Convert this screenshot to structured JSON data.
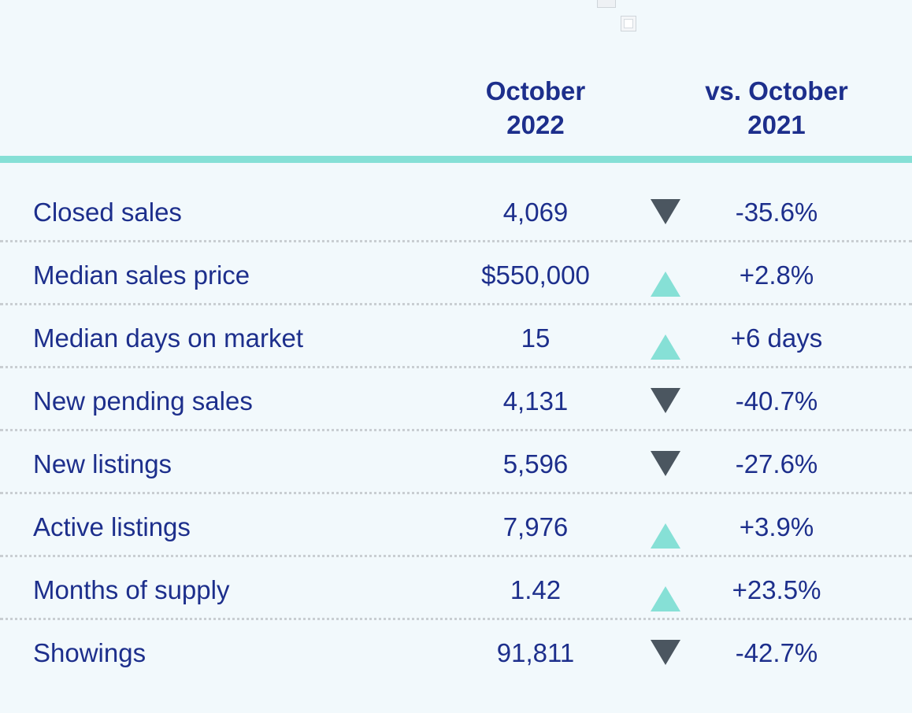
{
  "colors": {
    "text": "#1d2f8c",
    "rule": "#86e0d6",
    "up": "#86e0d6",
    "down": "#4b5660",
    "background": "#f2f9fc"
  },
  "header": {
    "current": [
      "October",
      "2022"
    ],
    "compare": [
      "vs. October",
      "2021"
    ]
  },
  "chart_data": {
    "type": "table",
    "columns": [
      "",
      "October 2022",
      "",
      "vs. October 2021"
    ],
    "rows": [
      {
        "label": "Closed sales",
        "value": "4,069",
        "direction": "down",
        "change": "-35.6%"
      },
      {
        "label": "Median sales price",
        "value": "$550,000",
        "direction": "up",
        "change": "+2.8%"
      },
      {
        "label": "Median days on market",
        "value": "15",
        "direction": "up",
        "change": "+6 days"
      },
      {
        "label": "New pending sales",
        "value": "4,131",
        "direction": "down",
        "change": "-40.7%"
      },
      {
        "label": "New listings",
        "value": "5,596",
        "direction": "down",
        "change": "-27.6%"
      },
      {
        "label": "Active listings",
        "value": "7,976",
        "direction": "up",
        "change": "+3.9%"
      },
      {
        "label": "Months of supply",
        "value": "1.42",
        "direction": "up",
        "change": "+23.5%"
      },
      {
        "label": "Showings",
        "value": "91,811",
        "direction": "down",
        "change": "-42.7%"
      }
    ]
  }
}
